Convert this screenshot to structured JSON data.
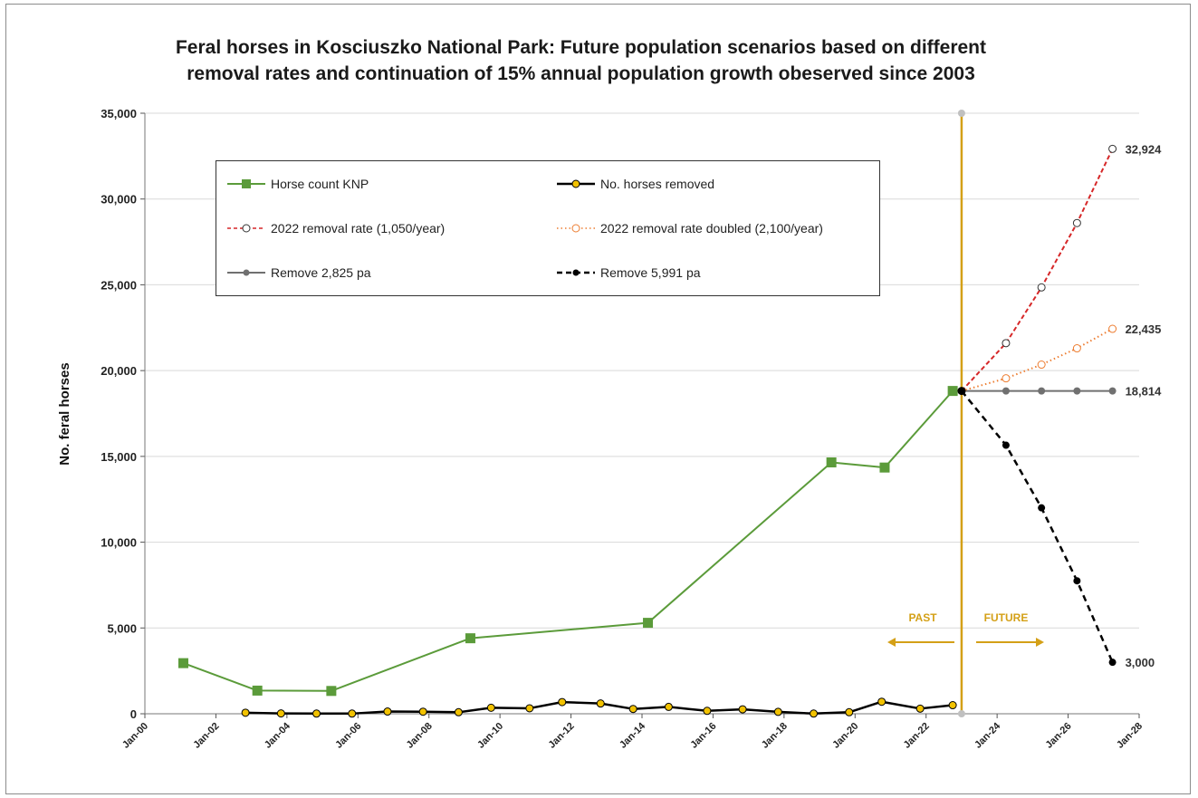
{
  "chart_data": {
    "type": "line",
    "title_lines": [
      "Feral horses in Kosciuszko National Park: Future population scenarios based on different",
      "removal rates and continuation of 15% annual population growth obeserved since 2003"
    ],
    "ylabel": "No. feral horses",
    "xlabel": "",
    "ylim": [
      0,
      35000
    ],
    "y_ticks": [
      0,
      5000,
      10000,
      15000,
      20000,
      25000,
      30000,
      35000
    ],
    "y_tick_labels": [
      "0",
      "5,000",
      "10,000",
      "15,000",
      "20,000",
      "25,000",
      "30,000",
      "35,000"
    ],
    "xlim": [
      "2000-01",
      "2028-01"
    ],
    "x_ticks": [
      "2000-01",
      "2002-01",
      "2004-01",
      "2006-01",
      "2008-01",
      "2010-01",
      "2012-01",
      "2014-01",
      "2016-01",
      "2018-01",
      "2020-01",
      "2022-01",
      "2024-01",
      "2026-01",
      "2028-01"
    ],
    "x_tick_labels": [
      "Jan-00",
      "Jan-02",
      "Jan-04",
      "Jan-06",
      "Jan-08",
      "Jan-10",
      "Jan-12",
      "Jan-14",
      "Jan-16",
      "Jan-18",
      "Jan-20",
      "Jan-22",
      "Jan-24",
      "Jan-26",
      "Jan-28"
    ],
    "grid": "horizontal",
    "legend_position": "top-left inside plot",
    "divider_date": "2023-01",
    "series": [
      {
        "name": "Horse count KNP",
        "color": "#5b9b3a",
        "marker": "square",
        "x": [
          "2001-02",
          "2003-03",
          "2005-04",
          "2009-03",
          "2014-03",
          "2019-05",
          "2020-11",
          "2022-10"
        ],
        "y": [
          2950,
          1350,
          1330,
          4400,
          5300,
          14650,
          14350,
          18814
        ]
      },
      {
        "name": "No. horses removed",
        "color": "#000000",
        "marker_fill": "#f2c200",
        "marker": "circle",
        "x": [
          "2002-11",
          "2003-11",
          "2004-11",
          "2005-11",
          "2006-11",
          "2007-11",
          "2008-11",
          "2009-10",
          "2010-11",
          "2011-10",
          "2012-11",
          "2013-10",
          "2014-10",
          "2015-11",
          "2016-11",
          "2017-11",
          "2018-11",
          "2019-11",
          "2020-10",
          "2021-11",
          "2022-10"
        ],
        "y": [
          60,
          20,
          10,
          10,
          130,
          120,
          90,
          350,
          320,
          680,
          600,
          280,
          400,
          170,
          260,
          110,
          10,
          90,
          700,
          300,
          500
        ]
      },
      {
        "name": "2022 removal rate (1,050/year)",
        "color": "#d62728",
        "dash": "dashed",
        "marker": "open-circle",
        "x": [
          "2023-01",
          "2024-04",
          "2025-04",
          "2026-04",
          "2027-04"
        ],
        "y": [
          18814,
          21600,
          24850,
          28600,
          32924
        ]
      },
      {
        "name": "2022 removal rate doubled (2,100/year)",
        "color": "#ed7d31",
        "dash": "dotted",
        "marker": "open-circle",
        "x": [
          "2023-01",
          "2024-04",
          "2025-04",
          "2026-04",
          "2027-04"
        ],
        "y": [
          18814,
          19550,
          20350,
          21300,
          22435
        ]
      },
      {
        "name": "Remove 2,825 pa",
        "color": "#707070",
        "marker": "circle",
        "x": [
          "2023-01",
          "2024-04",
          "2025-04",
          "2026-04",
          "2027-04"
        ],
        "y": [
          18814,
          18814,
          18814,
          18814,
          18814
        ]
      },
      {
        "name": "Remove 5,991 pa",
        "color": "#000000",
        "dash": "dashed",
        "marker": "circle",
        "x": [
          "2023-01",
          "2024-04",
          "2025-04",
          "2026-04",
          "2027-04"
        ],
        "y": [
          18814,
          15650,
          12000,
          7750,
          3000
        ]
      }
    ],
    "end_labels": [
      "32,924",
      "22,435",
      "18,814",
      "3,000"
    ],
    "annotations": {
      "past": "PAST",
      "future": "FUTURE"
    }
  }
}
